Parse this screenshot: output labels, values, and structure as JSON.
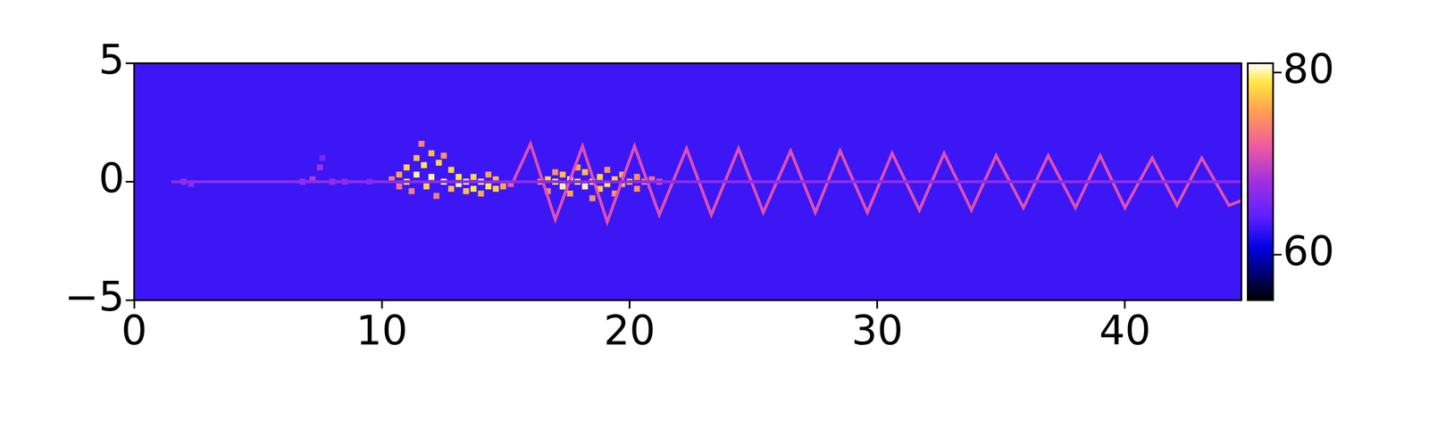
{
  "chart_data": {
    "type": "heatmap",
    "xlim": [
      0,
      44.7
    ],
    "ylim": [
      -5,
      5
    ],
    "xticks": [
      0,
      10,
      20,
      30,
      40
    ],
    "yticks": [
      {
        "value": -5,
        "label": "−5"
      },
      0,
      5
    ],
    "grid": false,
    "background": 63,
    "ridges": [
      {
        "value": 67,
        "x": [
          1.5,
          44.7
        ],
        "y": [
          0,
          0
        ]
      },
      {
        "value": 71,
        "x": [
          15.3,
          16.0,
          17.0,
          18.1,
          19.1,
          20.2,
          21.2,
          22.3,
          23.3,
          24.4,
          25.4,
          26.5,
          27.5,
          28.5,
          29.6,
          30.6,
          31.7,
          32.7,
          33.8,
          34.8,
          35.9,
          36.9,
          38.0,
          39.0,
          40.0,
          41.1,
          42.1,
          43.1,
          44.2,
          44.7
        ],
        "y": [
          0,
          1.6,
          -1.6,
          1.5,
          -1.7,
          1.5,
          -1.4,
          1.4,
          -1.4,
          1.4,
          -1.3,
          1.3,
          -1.3,
          1.3,
          -1.3,
          1.2,
          -1.2,
          1.2,
          -1.2,
          1.1,
          -1.1,
          1.1,
          -1.1,
          1.1,
          -1.1,
          1.0,
          -1.0,
          1.0,
          -1.0,
          -0.8
        ]
      }
    ],
    "cells": [
      [
        2.0,
        0,
        68
      ],
      [
        2.3,
        -0.1,
        67
      ],
      [
        6.8,
        0,
        68
      ],
      [
        7.2,
        0.1,
        69
      ],
      [
        7.5,
        0.6,
        68
      ],
      [
        7.6,
        1.0,
        66
      ],
      [
        8.0,
        0,
        68
      ],
      [
        8.5,
        0,
        67
      ],
      [
        9.5,
        0,
        66
      ],
      [
        10.4,
        0.1,
        74
      ],
      [
        10.7,
        0.3,
        76
      ],
      [
        10.7,
        -0.2,
        73
      ],
      [
        11.0,
        0.6,
        78
      ],
      [
        11.0,
        0.0,
        79
      ],
      [
        11.2,
        -0.4,
        74
      ],
      [
        11.4,
        1.0,
        77
      ],
      [
        11.4,
        0.3,
        80
      ],
      [
        11.6,
        1.6,
        74
      ],
      [
        11.7,
        0.7,
        79
      ],
      [
        11.8,
        -0.2,
        78
      ],
      [
        12.0,
        1.2,
        77
      ],
      [
        12.0,
        0.2,
        80
      ],
      [
        12.2,
        -0.6,
        74
      ],
      [
        12.3,
        0.8,
        78
      ],
      [
        12.5,
        1.1,
        75
      ],
      [
        12.5,
        0.0,
        80
      ],
      [
        12.8,
        0.5,
        78
      ],
      [
        12.8,
        -0.3,
        77
      ],
      [
        13.1,
        0.2,
        79
      ],
      [
        13.1,
        -0.1,
        80
      ],
      [
        13.4,
        0.0,
        80
      ],
      [
        13.4,
        -0.4,
        77
      ],
      [
        13.7,
        0.2,
        78
      ],
      [
        13.7,
        -0.3,
        79
      ],
      [
        14.0,
        0.0,
        80
      ],
      [
        14.0,
        -0.5,
        76
      ],
      [
        14.3,
        -0.2,
        79
      ],
      [
        14.3,
        0.3,
        76
      ],
      [
        14.6,
        -0.3,
        78
      ],
      [
        14.6,
        0.1,
        77
      ],
      [
        14.9,
        -0.2,
        76
      ],
      [
        15.2,
        -0.1,
        72
      ],
      [
        16.4,
        0.0,
        75
      ],
      [
        16.7,
        0.1,
        78
      ],
      [
        16.7,
        -0.4,
        74
      ],
      [
        17.0,
        0.0,
        79
      ],
      [
        17.0,
        0.4,
        75
      ],
      [
        17.3,
        -0.2,
        80
      ],
      [
        17.3,
        0.3,
        77
      ],
      [
        17.6,
        0.1,
        80
      ],
      [
        17.6,
        -0.5,
        76
      ],
      [
        17.9,
        0.0,
        79
      ],
      [
        17.9,
        0.6,
        76
      ],
      [
        18.2,
        -0.2,
        80
      ],
      [
        18.2,
        0.4,
        77
      ],
      [
        18.5,
        0.0,
        79
      ],
      [
        18.5,
        -0.7,
        75
      ],
      [
        18.8,
        0.2,
        78
      ],
      [
        18.8,
        -0.3,
        78
      ],
      [
        19.1,
        -0.1,
        79
      ],
      [
        19.1,
        0.5,
        75
      ],
      [
        19.4,
        0.1,
        78
      ],
      [
        19.4,
        -0.5,
        75
      ],
      [
        19.7,
        -0.1,
        77
      ],
      [
        19.7,
        0.3,
        76
      ],
      [
        20.0,
        0.0,
        77
      ],
      [
        20.3,
        0.2,
        75
      ],
      [
        20.3,
        -0.3,
        75
      ],
      [
        20.6,
        0.0,
        74
      ],
      [
        20.9,
        0.1,
        73
      ],
      [
        21.2,
        0.0,
        71
      ]
    ],
    "colorbar": {
      "range": [
        55,
        81
      ],
      "ticks": [
        60,
        80
      ]
    }
  }
}
